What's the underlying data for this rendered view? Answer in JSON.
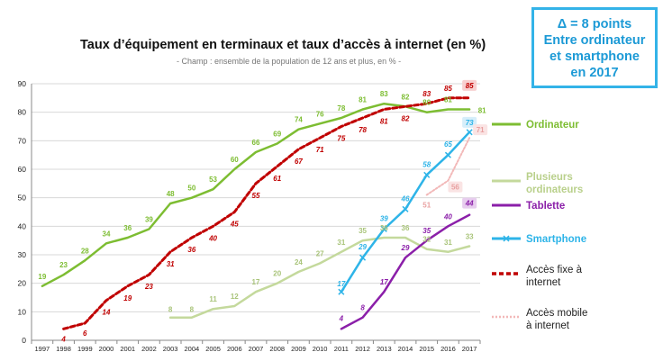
{
  "callout": {
    "line1": "Δ = 8 points",
    "line2": "Entre ordinateur",
    "line3": "et smartphone",
    "line4": "en 2017"
  },
  "chart_data": {
    "type": "line",
    "title": "Taux d’équipement en terminaux et  taux d’accès à internet (en %)",
    "subtitle": "- Champ : ensemble de la population de 12 ans et plus, en % -",
    "categories": [
      "1997",
      "1998",
      "1999",
      "2000",
      "2001",
      "2002",
      "2003",
      "2004",
      "2005",
      "2006",
      "2007",
      "2008",
      "2009",
      "2010",
      "2011",
      "2012",
      "2013",
      "2014",
      "2015",
      "2016",
      "2017"
    ],
    "ylim": [
      0,
      90
    ],
    "yticks": [
      0,
      10,
      20,
      30,
      40,
      50,
      60,
      70,
      80,
      90
    ],
    "grid": true,
    "legend_position": "right",
    "series": [
      {
        "name": "Ordinateur",
        "color": "#7dbd32",
        "style": "solid",
        "width": 2.5,
        "values": [
          19,
          23,
          28,
          34,
          36,
          39,
          48,
          50,
          53,
          60,
          66,
          69,
          74,
          76,
          78,
          81,
          83,
          82,
          80,
          81,
          81
        ]
      },
      {
        "name": "Plusieurs ordinateurs",
        "color": "#c4d99c",
        "style": "solid",
        "width": 2.5,
        "values": [
          null,
          null,
          null,
          null,
          null,
          null,
          8,
          8,
          11,
          12,
          17,
          20,
          24,
          27,
          31,
          35,
          36,
          36,
          32,
          31,
          33
        ]
      },
      {
        "name": "Tablette",
        "color": "#8b1fa9",
        "style": "solid",
        "width": 2.5,
        "values": [
          null,
          null,
          null,
          null,
          null,
          null,
          null,
          null,
          null,
          null,
          null,
          null,
          null,
          null,
          4,
          8,
          17,
          29,
          35,
          40,
          44
        ]
      },
      {
        "name": "Smartphone",
        "color": "#2eb4e8",
        "style": "solid",
        "width": 2.5,
        "values": [
          null,
          null,
          null,
          null,
          null,
          null,
          null,
          null,
          null,
          null,
          null,
          null,
          null,
          null,
          17,
          29,
          39,
          46,
          58,
          65,
          73
        ]
      },
      {
        "name": "Accès fixe à internet",
        "color": "#c00000",
        "style": "dashed",
        "width": 3,
        "values": [
          null,
          4,
          6,
          14,
          19,
          23,
          31,
          36,
          40,
          45,
          55,
          61,
          67,
          71,
          75,
          78,
          81,
          82,
          83,
          85,
          85
        ]
      },
      {
        "name": "Accès mobile à internet",
        "color": "#f2b8b8",
        "style": "dotted",
        "width": 2,
        "values": [
          null,
          null,
          null,
          null,
          null,
          null,
          null,
          null,
          null,
          null,
          null,
          null,
          null,
          null,
          null,
          null,
          null,
          null,
          51,
          56,
          71
        ]
      }
    ],
    "legend_labels": [
      {
        "series": 0,
        "line1": "Ordinateur",
        "line2": ""
      },
      {
        "series": 1,
        "line1": "Plusieurs",
        "line2": "ordinateurs"
      },
      {
        "series": 2,
        "line1": "Tablette",
        "line2": ""
      },
      {
        "series": 3,
        "line1": "Smartphone",
        "line2": ""
      },
      {
        "series": 4,
        "line1": "Accès fixe à",
        "line2": "internet"
      },
      {
        "series": 5,
        "line1": "Accès mobile",
        "line2": "à internet"
      }
    ]
  }
}
